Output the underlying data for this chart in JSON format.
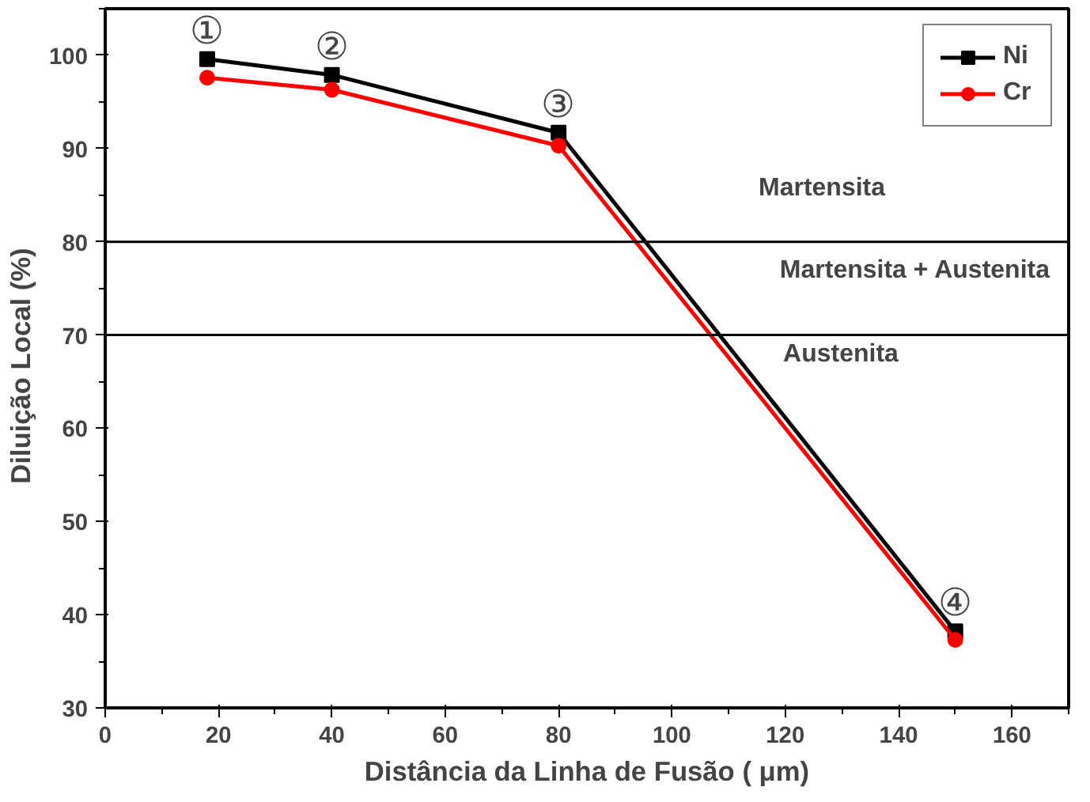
{
  "chart_data": {
    "type": "line",
    "xlabel": "Distância da Linha de Fusão ( μm)",
    "ylabel": "Diluição  Local  (%)",
    "x": [
      18,
      40,
      80,
      150
    ],
    "series": [
      {
        "name": "Ni",
        "color": "#000000",
        "marker": "square",
        "values": [
          99.6,
          97.9,
          91.7,
          38.2
        ]
      },
      {
        "name": "Cr",
        "color": "#ff0000",
        "marker": "circle",
        "values": [
          97.6,
          96.3,
          90.3,
          37.3
        ]
      }
    ],
    "xlim": [
      0,
      170
    ],
    "xticks": [
      0,
      20,
      40,
      60,
      80,
      100,
      120,
      140,
      160
    ],
    "ylim": [
      30,
      105
    ],
    "yticks": [
      30,
      40,
      50,
      60,
      70,
      80,
      90,
      100
    ],
    "ref_lines": [
      {
        "axis": "y",
        "value": 80,
        "label": null,
        "color": "#000000"
      },
      {
        "axis": "y",
        "value": 70,
        "label": null,
        "color": "#000000"
      }
    ],
    "annotations": [
      {
        "text": "①",
        "x": 18,
        "y": 99.6
      },
      {
        "text": "②",
        "x": 40,
        "y": 97.9
      },
      {
        "text": "③",
        "x": 80,
        "y": 91.7
      },
      {
        "text": "④",
        "x": 150,
        "y": 38.2
      },
      "Martensita",
      "Martensita + Austenita",
      "Austenita"
    ],
    "grid": false,
    "legend": "top right",
    "line_style": "solid"
  }
}
